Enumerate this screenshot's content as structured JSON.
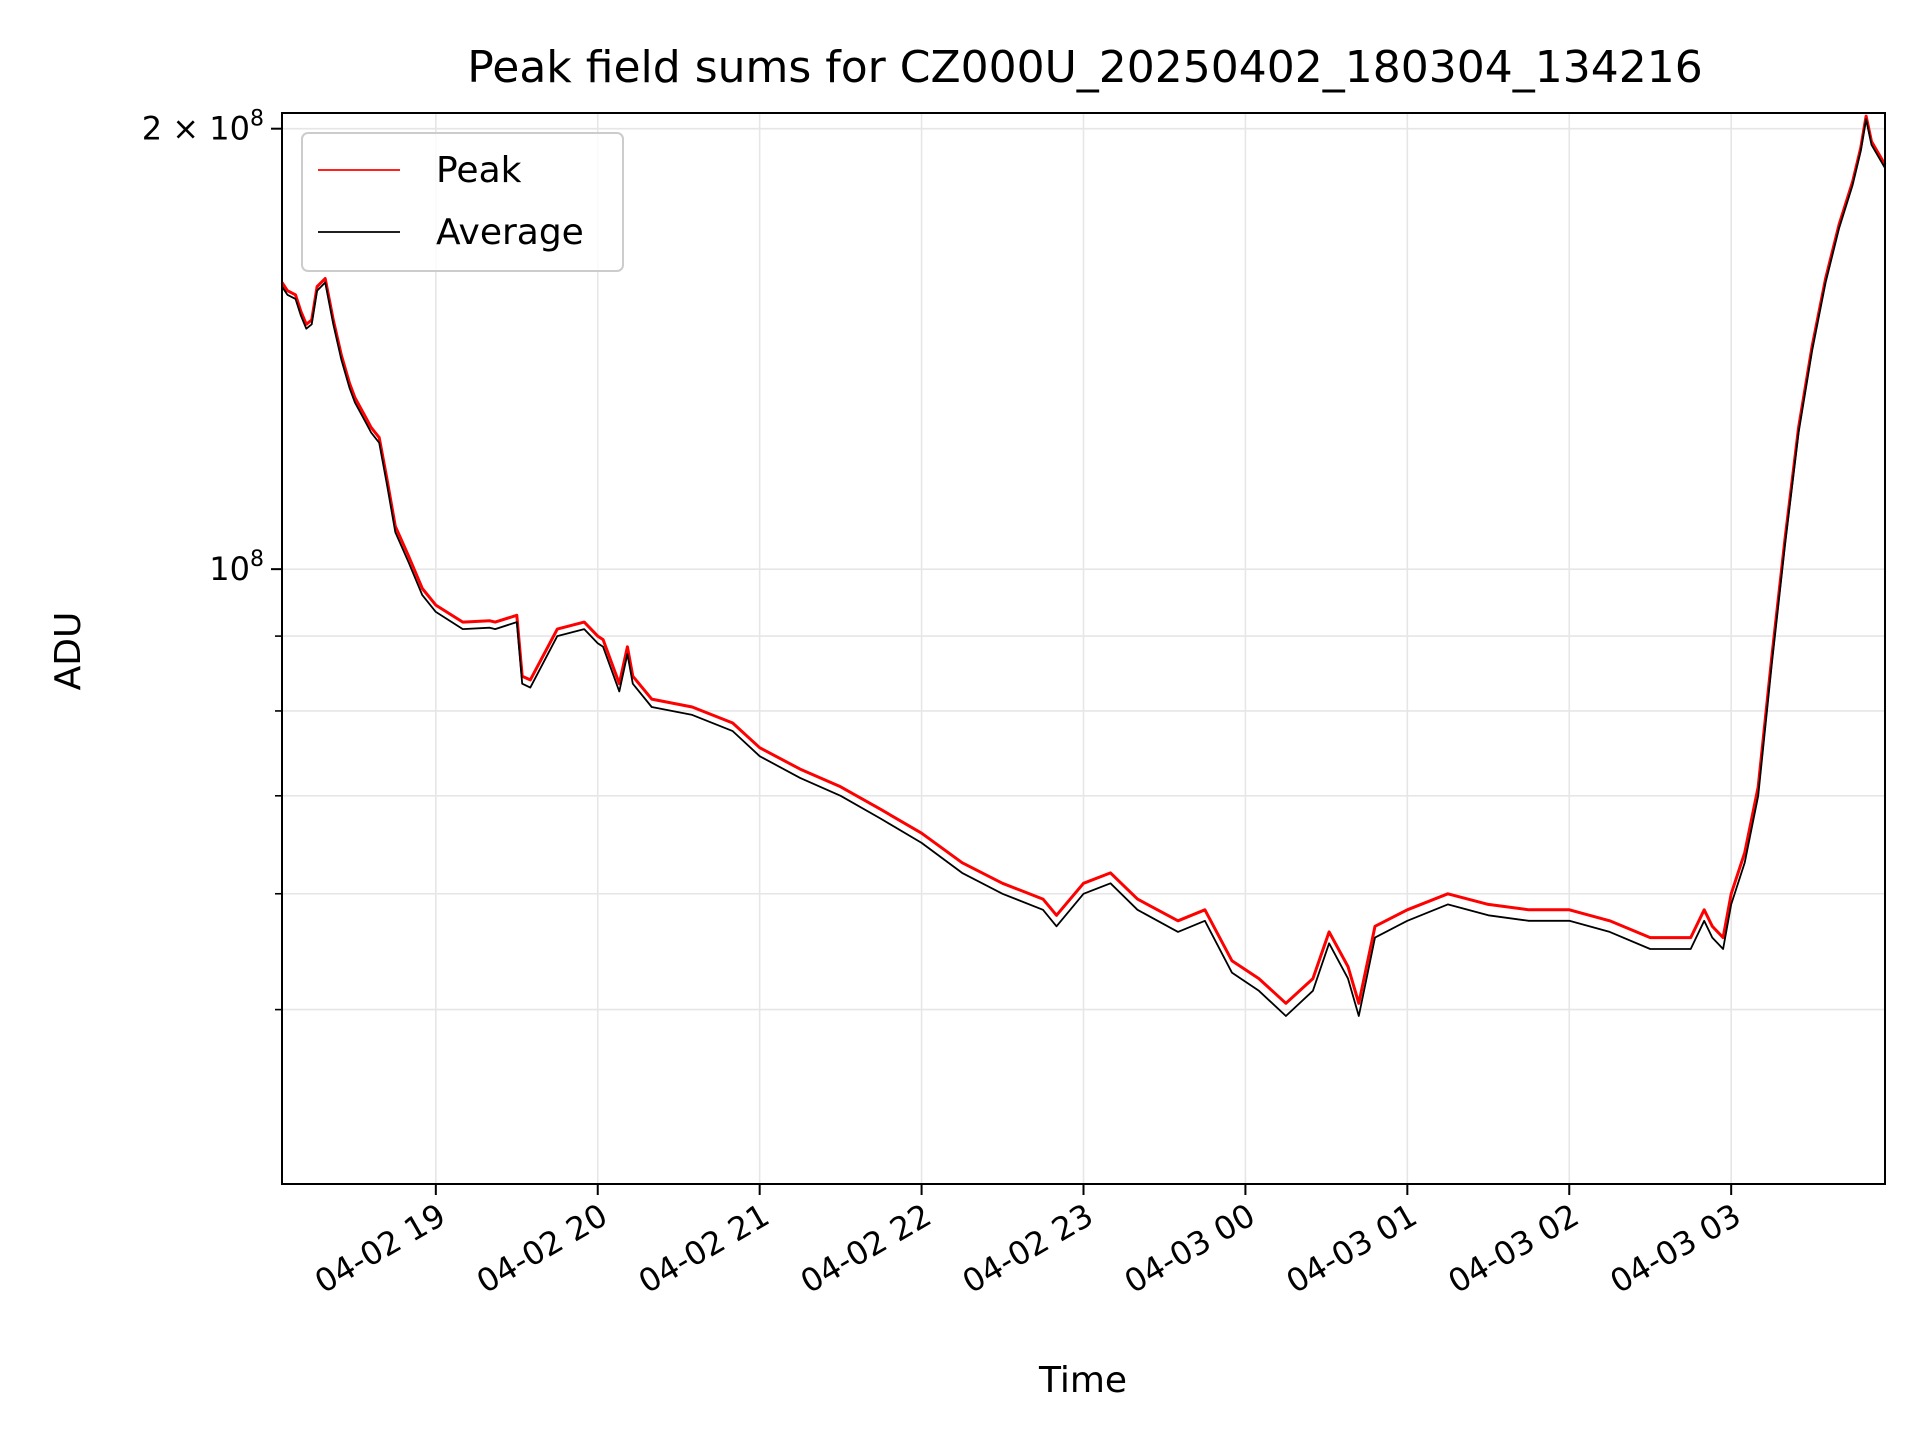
{
  "chart_data": {
    "type": "line",
    "title": "Peak field sums for CZ000U_20250402_180304_134216",
    "xlabel": "Time",
    "ylabel": "ADU",
    "y_scale": "log",
    "ylim": [
      38000000,
      205000000
    ],
    "xlim": [
      "2025-04-02T18:03",
      "2025-04-03T03:57"
    ],
    "grid": true,
    "legend": "upper-left",
    "x_ticks": [
      {
        "t": "2025-04-02T19:00",
        "label": "04-02 19"
      },
      {
        "t": "2025-04-02T20:00",
        "label": "04-02 20"
      },
      {
        "t": "2025-04-02T21:00",
        "label": "04-02 21"
      },
      {
        "t": "2025-04-02T22:00",
        "label": "04-02 22"
      },
      {
        "t": "2025-04-02T23:00",
        "label": "04-02 23"
      },
      {
        "t": "2025-04-03T00:00",
        "label": "04-03 00"
      },
      {
        "t": "2025-04-03T01:00",
        "label": "04-03 01"
      },
      {
        "t": "2025-04-03T02:00",
        "label": "04-03 02"
      },
      {
        "t": "2025-04-03T03:00",
        "label": "04-03 03"
      }
    ],
    "y_major_ticks": [
      {
        "v": 100000000,
        "base": "10",
        "exp": "8"
      },
      {
        "v": 200000000,
        "base": "2 × 10",
        "exp": "8"
      }
    ],
    "y_minor_ticks": [
      50000000,
      60000000,
      70000000,
      80000000,
      90000000
    ],
    "x": [
      "2025-04-02T18:03",
      "2025-04-02T18:05",
      "2025-04-02T18:08",
      "2025-04-02T18:10",
      "2025-04-02T18:12",
      "2025-04-02T18:14",
      "2025-04-02T18:16",
      "2025-04-02T18:19",
      "2025-04-02T18:22",
      "2025-04-02T18:25",
      "2025-04-02T18:28",
      "2025-04-02T18:30",
      "2025-04-02T18:34",
      "2025-04-02T18:36",
      "2025-04-02T18:39",
      "2025-04-02T18:42",
      "2025-04-02T18:45",
      "2025-04-02T18:50",
      "2025-04-02T18:55",
      "2025-04-02T19:00",
      "2025-04-02T19:10",
      "2025-04-02T19:20",
      "2025-04-02T19:22",
      "2025-04-02T19:30",
      "2025-04-02T19:32",
      "2025-04-02T19:35",
      "2025-04-02T19:45",
      "2025-04-02T19:55",
      "2025-04-02T20:00",
      "2025-04-02T20:02",
      "2025-04-02T20:08",
      "2025-04-02T20:11",
      "2025-04-02T20:13",
      "2025-04-02T20:20",
      "2025-04-02T20:35",
      "2025-04-02T20:50",
      "2025-04-02T21:00",
      "2025-04-02T21:15",
      "2025-04-02T21:30",
      "2025-04-02T21:45",
      "2025-04-02T22:00",
      "2025-04-02T22:15",
      "2025-04-02T22:30",
      "2025-04-02T22:45",
      "2025-04-02T22:50",
      "2025-04-02T23:00",
      "2025-04-02T23:10",
      "2025-04-02T23:20",
      "2025-04-02T23:35",
      "2025-04-02T23:45",
      "2025-04-02T23:55",
      "2025-04-03T00:05",
      "2025-04-03T00:15",
      "2025-04-03T00:25",
      "2025-04-03T00:31",
      "2025-04-03T00:38",
      "2025-04-03T00:42",
      "2025-04-03T00:48",
      "2025-04-03T01:00",
      "2025-04-03T01:15",
      "2025-04-03T01:30",
      "2025-04-03T01:45",
      "2025-04-03T02:00",
      "2025-04-03T02:15",
      "2025-04-03T02:30",
      "2025-04-03T02:45",
      "2025-04-03T02:50",
      "2025-04-03T02:53",
      "2025-04-03T02:57",
      "2025-04-03T03:00",
      "2025-04-03T03:05",
      "2025-04-03T03:10",
      "2025-04-03T03:15",
      "2025-04-03T03:20",
      "2025-04-03T03:25",
      "2025-04-03T03:30",
      "2025-04-03T03:35",
      "2025-04-03T03:40",
      "2025-04-03T03:45",
      "2025-04-03T03:48",
      "2025-04-03T03:50",
      "2025-04-03T03:52",
      "2025-04-03T03:57"
    ],
    "series": [
      {
        "name": "Peak",
        "color": "#ff0000",
        "values": [
          157000000,
          155000000,
          154000000,
          150000000,
          147000000,
          148000000,
          156000000,
          158000000,
          148000000,
          140000000,
          134000000,
          131000000,
          127000000,
          125000000,
          123000000,
          115000000,
          107000000,
          102000000,
          97000000,
          94500000,
          92000000,
          92200000,
          92000000,
          93000000,
          84500000,
          84000000,
          91000000,
          92000000,
          90000000,
          89500000,
          83500000,
          88500000,
          84500000,
          81500000,
          80500000,
          78500000,
          75500000,
          73000000,
          71000000,
          68500000,
          66000000,
          63000000,
          61000000,
          59500000,
          58000000,
          61000000,
          62000000,
          59500000,
          57500000,
          58500000,
          54000000,
          52500000,
          50500000,
          52500000,
          56500000,
          53500000,
          50500000,
          57000000,
          58500000,
          60000000,
          59000000,
          58500000,
          58500000,
          57500000,
          56000000,
          56000000,
          58500000,
          57000000,
          56000000,
          60000000,
          64000000,
          71000000,
          87000000,
          105000000,
          125000000,
          142000000,
          158000000,
          172000000,
          184000000,
          194000000,
          204000000,
          196000000,
          189000000
        ]
      },
      {
        "name": "Average",
        "color": "#000000",
        "values": [
          156000000,
          154000000,
          153000000,
          149000000,
          146000000,
          147000000,
          155000000,
          157000000,
          147000000,
          139000000,
          133000000,
          130000000,
          126000000,
          124000000,
          122000000,
          114000000,
          106000000,
          101000000,
          96000000,
          93500000,
          91000000,
          91200000,
          91000000,
          92000000,
          83500000,
          83000000,
          90000000,
          91000000,
          89000000,
          88500000,
          82500000,
          87500000,
          83500000,
          80500000,
          79500000,
          77500000,
          74500000,
          72000000,
          70000000,
          67500000,
          65000000,
          62000000,
          60000000,
          58500000,
          57000000,
          60000000,
          61000000,
          58500000,
          56500000,
          57500000,
          53000000,
          51500000,
          49500000,
          51500000,
          55500000,
          52500000,
          49500000,
          56000000,
          57500000,
          59000000,
          58000000,
          57500000,
          57500000,
          56500000,
          55000000,
          55000000,
          57500000,
          56000000,
          55000000,
          59000000,
          63000000,
          70000000,
          86000000,
          104000000,
          124000000,
          141000000,
          157000000,
          171000000,
          183000000,
          193000000,
          203000000,
          195000000,
          188000000
        ]
      }
    ]
  }
}
